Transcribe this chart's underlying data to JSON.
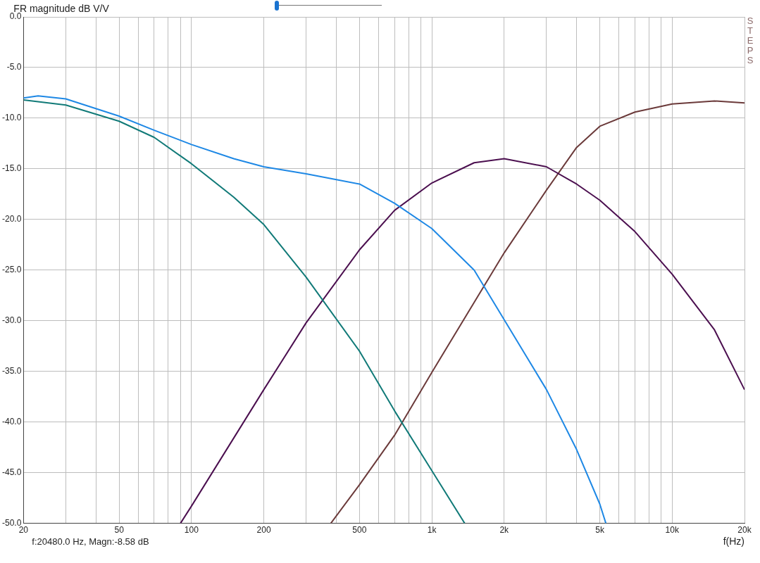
{
  "chart_data": {
    "type": "line",
    "ylabel": "FR magnitude dB V/V",
    "xlabel": "f(Hz)",
    "annotations": [
      "f:20480.0 Hz, Magn:-8.58 dB",
      "STEPS"
    ],
    "log": "x",
    "grid": true,
    "legend": false,
    "marker": "none",
    "line_style": "solid",
    "xlim": [
      20,
      20000
    ],
    "ylim": [
      -50,
      0
    ],
    "xticks": [
      20,
      {
        "value": 30,
        "label": null
      },
      {
        "value": 40,
        "label": null
      },
      50,
      {
        "value": 60,
        "label": null
      },
      {
        "value": 70,
        "label": null
      },
      {
        "value": 80,
        "label": null
      },
      {
        "value": 90,
        "label": null
      },
      100,
      200,
      {
        "value": 300,
        "label": null
      },
      {
        "value": 400,
        "label": null
      },
      500,
      {
        "value": 600,
        "label": null
      },
      {
        "value": 700,
        "label": null
      },
      {
        "value": 800,
        "label": null
      },
      {
        "value": 900,
        "label": null
      },
      {
        "value": 1000,
        "label": "1k"
      },
      {
        "value": 2000,
        "label": "2k"
      },
      {
        "value": 3000,
        "label": null
      },
      {
        "value": 4000,
        "label": null
      },
      {
        "value": 5000,
        "label": "5k"
      },
      {
        "value": 6000,
        "label": null
      },
      {
        "value": 7000,
        "label": null
      },
      {
        "value": 8000,
        "label": null
      },
      {
        "value": 9000,
        "label": null
      },
      {
        "value": 10000,
        "label": "10k"
      },
      {
        "value": 20000,
        "label": "20k"
      }
    ],
    "yticks": [
      {
        "value": 0,
        "label": "0.0"
      },
      {
        "value": -5,
        "label": "-5.0"
      },
      {
        "value": -10,
        "label": "-10.0"
      },
      {
        "value": -15,
        "label": "-15.0"
      },
      {
        "value": -20,
        "label": "-20.0"
      },
      {
        "value": -25,
        "label": "-25.0"
      },
      {
        "value": -30,
        "label": "-30.0"
      },
      {
        "value": -35,
        "label": "-35.0"
      },
      {
        "value": -40,
        "label": "-40.0"
      },
      {
        "value": -45,
        "label": "-45.0"
      },
      {
        "value": -50,
        "label": "-50.0"
      }
    ],
    "series": [
      {
        "color": "#1e88e5",
        "x": [
          20,
          23,
          30,
          50,
          70,
          100,
          150,
          200,
          300,
          500,
          700,
          1000,
          1500,
          2000,
          3000,
          4000,
          5000,
          5300
        ],
        "values": [
          -8,
          -7.8,
          -8.1,
          -9.8,
          -11.2,
          -12.6,
          -14,
          -14.8,
          -15.5,
          -16.5,
          -18.4,
          -20.9,
          -25,
          -29.9,
          -36.8,
          -42.7,
          -48.1,
          -50
        ]
      },
      {
        "color": "#117a78",
        "x": [
          20,
          30,
          50,
          70,
          100,
          150,
          200,
          300,
          500,
          700,
          1000,
          1370
        ],
        "values": [
          -8.2,
          -8.7,
          -10.3,
          -11.9,
          -14.5,
          -17.8,
          -20.5,
          -25.7,
          -33,
          -38.9,
          -44.8,
          -50
        ]
      },
      {
        "color": "#4b0f4f",
        "x": [
          90,
          100,
          200,
          300,
          500,
          700,
          1000,
          1500,
          2000,
          3000,
          4000,
          5000,
          7000,
          10000,
          15000,
          20000
        ],
        "values": [
          -50,
          -48.3,
          -36.8,
          -30.2,
          -23,
          -19.1,
          -16.4,
          -14.4,
          -14,
          -14.8,
          -16.5,
          -18.1,
          -21.2,
          -25.4,
          -30.9,
          -36.8
        ]
      },
      {
        "color": "#6b3a3a",
        "x": [
          380,
          500,
          700,
          1000,
          1500,
          2000,
          3000,
          4000,
          5000,
          7000,
          10000,
          15000,
          20000
        ],
        "values": [
          -50,
          -46.2,
          -41.3,
          -35.1,
          -28.2,
          -23.3,
          -17.1,
          -12.9,
          -10.8,
          -9.4,
          -8.6,
          -8.3,
          -8.5
        ]
      }
    ]
  }
}
